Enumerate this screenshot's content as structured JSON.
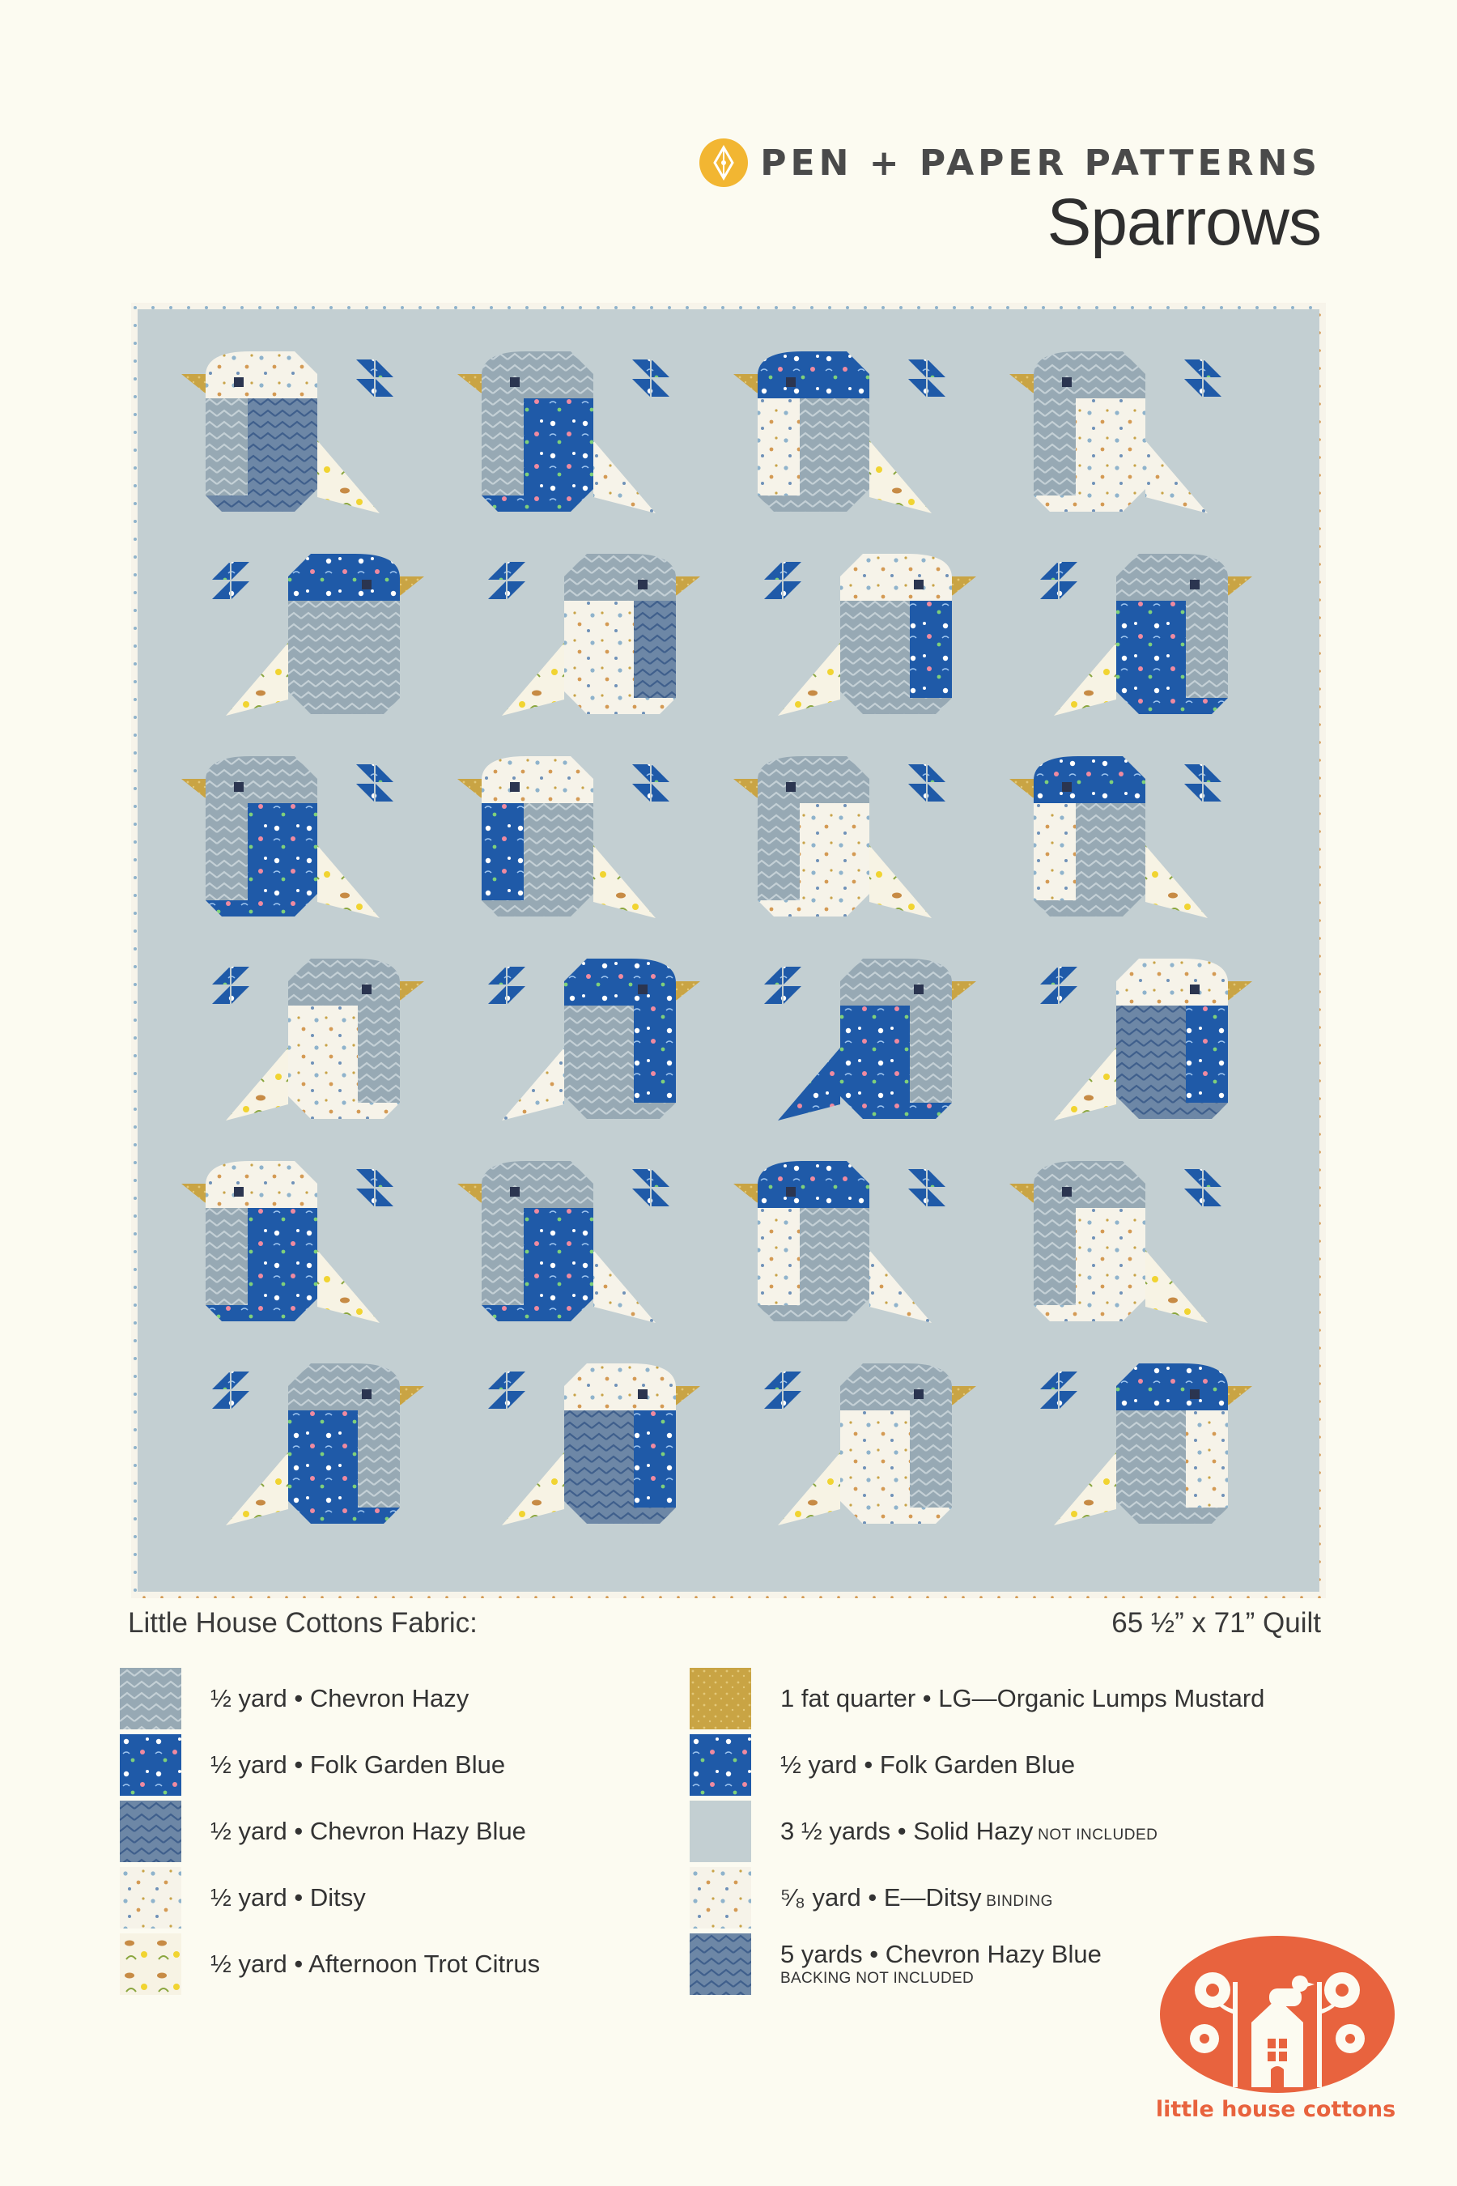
{
  "header": {
    "brand_name": "PEN + PAPER PATTERNS",
    "brand_logo_icon": "pen-nib-circle-icon",
    "title": "Sparrows"
  },
  "colors": {
    "background": "#fcfbf1",
    "solid_hazy": "#c3cfd2",
    "chevron_hazy": "#97a9b4",
    "chevron_hazy_blue": "#6d87a6",
    "folk_garden_blue": "#1f5aa8",
    "ditsy": "#f6f3e9",
    "mustard": "#c9a444",
    "orange_logo": "#e8633e"
  },
  "quilt": {
    "rows": 6,
    "columns": 4,
    "blocks": [
      {
        "dir": "left",
        "head": "ditsy",
        "body": "chevron_hazy_blue",
        "belly": "chevron_hazy",
        "tail": "trot"
      },
      {
        "dir": "left",
        "head": "chevron_hazy",
        "body": "folk",
        "belly": "chevron_hazy",
        "tail": "ditsy"
      },
      {
        "dir": "left",
        "head": "folk",
        "body": "chevron_hazy",
        "belly": "ditsy",
        "tail": "trot"
      },
      {
        "dir": "left",
        "head": "chevron_hazy",
        "body": "ditsy",
        "belly": "chevron_hazy",
        "tail": "ditsy"
      },
      {
        "dir": "right",
        "head": "folk",
        "body": "chevron_hazy",
        "belly": "chevron_hazy",
        "tail": "trot"
      },
      {
        "dir": "right",
        "head": "chevron_hazy",
        "body": "ditsy",
        "belly": "chevron_hazy_blue",
        "tail": "trot"
      },
      {
        "dir": "right",
        "head": "ditsy",
        "body": "chevron_hazy",
        "belly": "folk",
        "tail": "trot"
      },
      {
        "dir": "right",
        "head": "chevron_hazy",
        "body": "folk",
        "belly": "chevron_hazy",
        "tail": "trot"
      },
      {
        "dir": "left",
        "head": "chevron_hazy",
        "body": "folk",
        "belly": "chevron_hazy",
        "tail": "trot"
      },
      {
        "dir": "left",
        "head": "ditsy",
        "body": "chevron_hazy",
        "belly": "folk",
        "tail": "trot"
      },
      {
        "dir": "left",
        "head": "chevron_hazy",
        "body": "ditsy",
        "belly": "chevron_hazy",
        "tail": "trot"
      },
      {
        "dir": "left",
        "head": "folk",
        "body": "chevron_hazy",
        "belly": "ditsy",
        "tail": "trot"
      },
      {
        "dir": "right",
        "head": "chevron_hazy",
        "body": "ditsy",
        "belly": "chevron_hazy",
        "tail": "trot"
      },
      {
        "dir": "right",
        "head": "folk",
        "body": "chevron_hazy",
        "belly": "folk",
        "tail": "ditsy"
      },
      {
        "dir": "right",
        "head": "chevron_hazy",
        "body": "folk",
        "belly": "chevron_hazy",
        "tail": "folk"
      },
      {
        "dir": "right",
        "head": "ditsy",
        "body": "chevron_hazy_blue",
        "belly": "folk",
        "tail": "trot"
      },
      {
        "dir": "left",
        "head": "ditsy",
        "body": "folk",
        "belly": "chevron_hazy",
        "tail": "trot"
      },
      {
        "dir": "left",
        "head": "chevron_hazy",
        "body": "folk",
        "belly": "chevron_hazy",
        "tail": "ditsy"
      },
      {
        "dir": "left",
        "head": "folk",
        "body": "chevron_hazy",
        "belly": "ditsy",
        "tail": "ditsy"
      },
      {
        "dir": "left",
        "head": "chevron_hazy",
        "body": "ditsy",
        "belly": "chevron_hazy",
        "tail": "trot"
      },
      {
        "dir": "right",
        "head": "chevron_hazy",
        "body": "folk",
        "belly": "chevron_hazy",
        "tail": "trot"
      },
      {
        "dir": "right",
        "head": "ditsy",
        "body": "chevron_hazy_blue",
        "belly": "folk",
        "tail": "trot"
      },
      {
        "dir": "right",
        "head": "chevron_hazy",
        "body": "ditsy",
        "belly": "chevron_hazy",
        "tail": "trot"
      },
      {
        "dir": "right",
        "head": "folk",
        "body": "chevron_hazy",
        "belly": "ditsy",
        "tail": "trot"
      }
    ]
  },
  "fabric": {
    "heading": "Little House Cottons Fabric:",
    "quilt_size": "65 ½” x 71” Quilt",
    "left": [
      {
        "swatch": "chevron_hazy",
        "label": "½ yard • Chevron Hazy"
      },
      {
        "swatch": "folk",
        "label": "½ yard • Folk Garden Blue"
      },
      {
        "swatch": "chevron_hazy_blue",
        "label": "½ yard • Chevron Hazy Blue"
      },
      {
        "swatch": "ditsy",
        "label": "½ yard • Ditsy"
      },
      {
        "swatch": "trot",
        "label": "½ yard • Afternoon Trot Citrus"
      }
    ],
    "right": [
      {
        "swatch": "mustard",
        "label": "1 fat quarter • LG—Organic Lumps Mustard",
        "note": "",
        "subnote": ""
      },
      {
        "swatch": "folk",
        "label": "½ yard • Folk Garden Blue",
        "note": "",
        "subnote": ""
      },
      {
        "swatch": "solid",
        "label": "3 ½ yards • Solid Hazy",
        "note": "NOT INCLUDED",
        "subnote": ""
      },
      {
        "swatch": "ditsy",
        "label": "⁵⁄₈ yard • E—Ditsy",
        "note": "BINDING",
        "subnote": ""
      },
      {
        "swatch": "chevron_hazy_blue",
        "label": "5 yards • Chevron Hazy Blue",
        "note": "",
        "subnote": "BACKING NOT INCLUDED"
      }
    ]
  },
  "footer": {
    "logo_icon": "house-with-flowers-and-bird-icon",
    "logo_name": "little house cottons"
  }
}
